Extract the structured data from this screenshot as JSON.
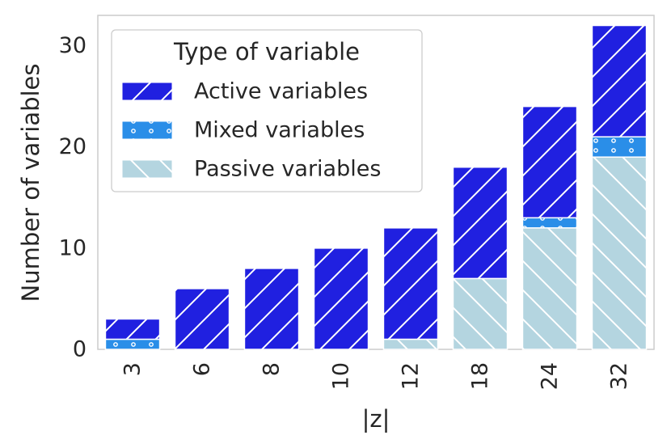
{
  "chart_data": {
    "type": "bar",
    "stacked": true,
    "categories": [
      "3",
      "6",
      "8",
      "10",
      "12",
      "18",
      "24",
      "32"
    ],
    "series": [
      {
        "name": "Passive variables",
        "values": [
          0,
          0,
          0,
          0,
          1,
          7,
          12,
          19
        ],
        "color": "#add8e6",
        "hatch": "backslash"
      },
      {
        "name": "Mixed variables",
        "values": [
          1,
          0,
          0,
          0,
          0,
          0,
          1,
          2
        ],
        "color": "#1e90ff",
        "hatch": "circles"
      },
      {
        "name": "Active variables",
        "values": [
          2,
          6,
          8,
          10,
          11,
          11,
          11,
          11
        ],
        "color": "#0000ff",
        "hatch": "slash"
      }
    ],
    "legend_order": [
      "Active variables",
      "Mixed variables",
      "Passive variables"
    ],
    "legend_title": "Type of variable",
    "legend_position": "top-left",
    "xlabel": "|z|",
    "ylabel": "Number of variables",
    "yticks": [
      0,
      10,
      20,
      30
    ],
    "ylim": [
      0,
      33
    ],
    "grid": false,
    "colors": {
      "frame": "#cccccc",
      "text": "#262626",
      "bar_edge": "#ffffff"
    }
  }
}
